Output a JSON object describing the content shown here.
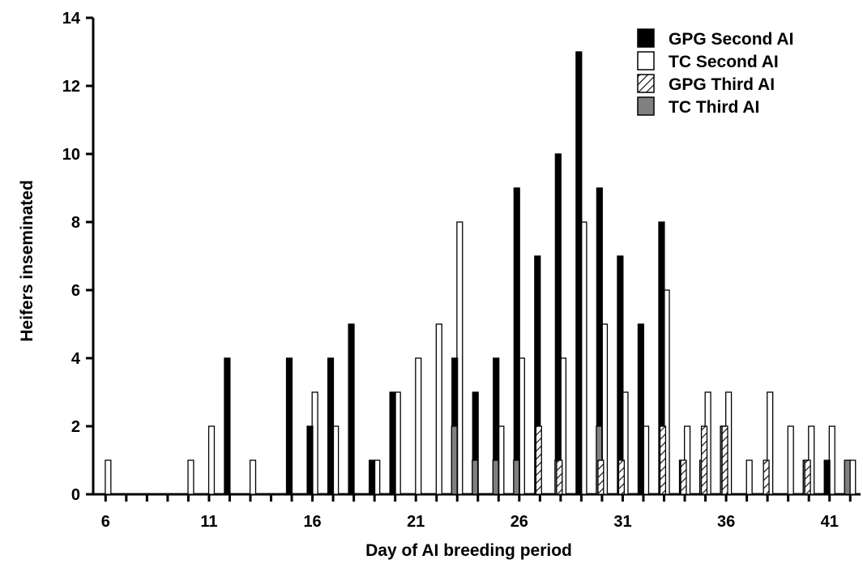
{
  "chart_data": {
    "type": "bar",
    "title": "",
    "xlabel": "Day of AI breeding period",
    "ylabel": "Heifers inseminated",
    "xlim": [
      5.4,
      42.5
    ],
    "ylim": [
      0,
      14
    ],
    "x_ticks": [
      6,
      7,
      8,
      9,
      10,
      11,
      12,
      13,
      14,
      15,
      16,
      17,
      18,
      19,
      20,
      21,
      22,
      23,
      24,
      25,
      26,
      27,
      28,
      29,
      30,
      31,
      32,
      33,
      34,
      35,
      36,
      37,
      38,
      39,
      40,
      41,
      42
    ],
    "x_tick_labels": [
      {
        "x": 6,
        "label": "6"
      },
      {
        "x": 11,
        "label": "11"
      },
      {
        "x": 16,
        "label": "16"
      },
      {
        "x": 21,
        "label": "21"
      },
      {
        "x": 26,
        "label": "26"
      },
      {
        "x": 31,
        "label": "31"
      },
      {
        "x": 36,
        "label": "36"
      },
      {
        "x": 41,
        "label": "41"
      }
    ],
    "y_ticks": [
      0,
      2,
      4,
      6,
      8,
      10,
      12,
      14
    ],
    "y_tick_labels": [
      "0",
      "2",
      "4",
      "6",
      "8",
      "10",
      "12",
      "14"
    ],
    "grid": false,
    "legend_position": "top-right",
    "series": [
      {
        "name": "GPG Second AI",
        "style": "solid-black",
        "color": "#000000",
        "points": [
          [
            12,
            4
          ],
          [
            15,
            4
          ],
          [
            16,
            2
          ],
          [
            17,
            4
          ],
          [
            18,
            5
          ],
          [
            19,
            1
          ],
          [
            20,
            3
          ],
          [
            23,
            4
          ],
          [
            24,
            3
          ],
          [
            25,
            4
          ],
          [
            26,
            9
          ],
          [
            27,
            7
          ],
          [
            28,
            10
          ],
          [
            29,
            13
          ],
          [
            30,
            9
          ],
          [
            31,
            7
          ],
          [
            32,
            5
          ],
          [
            33,
            8
          ],
          [
            34,
            1
          ],
          [
            36,
            2
          ],
          [
            41,
            1
          ]
        ]
      },
      {
        "name": "TC Second AI",
        "style": "white",
        "color": "#ffffff",
        "points": [
          [
            6,
            1
          ],
          [
            10,
            1
          ],
          [
            11,
            2
          ],
          [
            13,
            1
          ],
          [
            16,
            3
          ],
          [
            17,
            2
          ],
          [
            19,
            1
          ],
          [
            20,
            3
          ],
          [
            21,
            4
          ],
          [
            22,
            5
          ],
          [
            23,
            8
          ],
          [
            25,
            2
          ],
          [
            26,
            4
          ],
          [
            28,
            4
          ],
          [
            29,
            8
          ],
          [
            30,
            5
          ],
          [
            31,
            3
          ],
          [
            32,
            2
          ],
          [
            33,
            6
          ],
          [
            34,
            2
          ],
          [
            35,
            3
          ],
          [
            36,
            3
          ],
          [
            37,
            1
          ],
          [
            38,
            3
          ],
          [
            39,
            2
          ],
          [
            40,
            2
          ],
          [
            41,
            2
          ],
          [
            42,
            1
          ]
        ]
      },
      {
        "name": "GPG Third AI",
        "style": "hatched",
        "color": "#ffffff",
        "points": [
          [
            27,
            2
          ],
          [
            28,
            1
          ],
          [
            30,
            1
          ],
          [
            31,
            1
          ],
          [
            33,
            2
          ],
          [
            34,
            1
          ],
          [
            35,
            2
          ],
          [
            36,
            2
          ],
          [
            38,
            1
          ],
          [
            40,
            1
          ]
        ]
      },
      {
        "name": "TC Third AI",
        "style": "gray",
        "color": "#808080",
        "points": [
          [
            23,
            2
          ],
          [
            24,
            1
          ],
          [
            25,
            1
          ],
          [
            26,
            1
          ],
          [
            28,
            1
          ],
          [
            30,
            2
          ],
          [
            35,
            1
          ],
          [
            36,
            2
          ],
          [
            40,
            1
          ],
          [
            42,
            1
          ]
        ]
      }
    ]
  }
}
